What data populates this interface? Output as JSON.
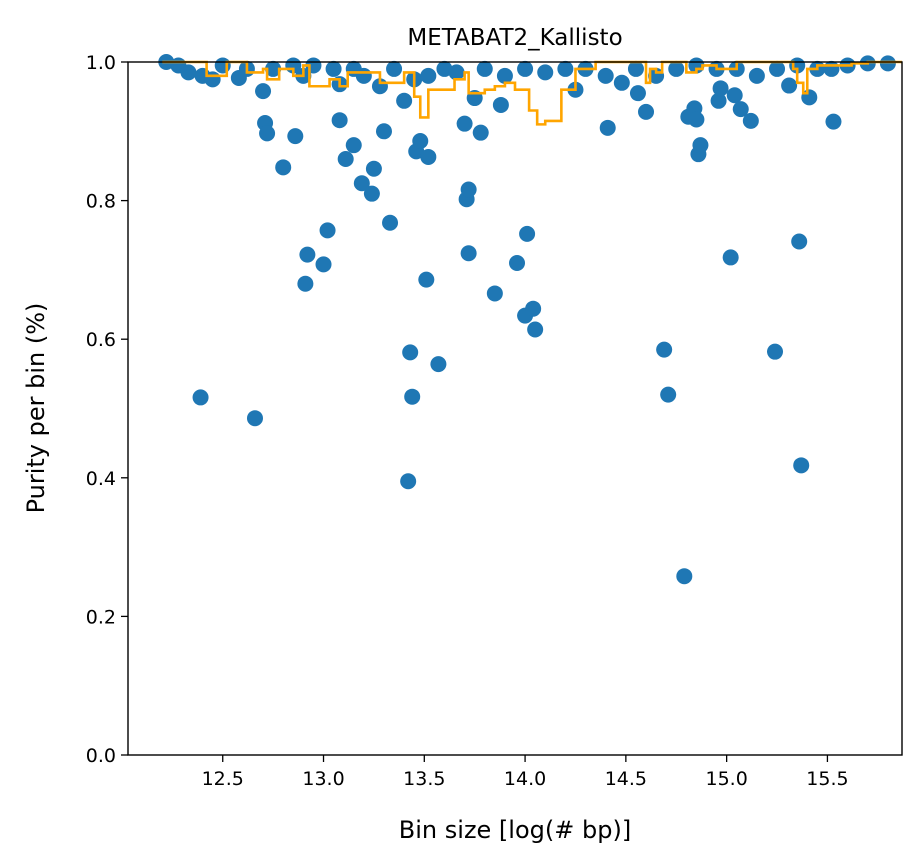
{
  "chart_data": {
    "type": "scatter",
    "title": "METABAT2_Kallisto",
    "xlabel": "Bin size [log(# bp)]",
    "ylabel": "Purity per bin (%)",
    "xlim": [
      12.03,
      15.87
    ],
    "ylim": [
      0.0,
      1.0
    ],
    "xticks": [
      12.5,
      13.0,
      13.5,
      14.0,
      14.5,
      15.0,
      15.5
    ],
    "xtick_labels": [
      "12.5",
      "13.0",
      "13.5",
      "14.0",
      "14.5",
      "15.0",
      "15.5"
    ],
    "yticks": [
      0.0,
      0.2,
      0.4,
      0.6,
      0.8,
      1.0
    ],
    "ytick_labels": [
      "0.0",
      "0.2",
      "0.4",
      "0.6",
      "0.8",
      "1.0"
    ],
    "grid": false,
    "colors": {
      "points": "#1f77b4",
      "line": "#ffa500"
    },
    "series": [
      {
        "kind": "scatter",
        "points": [
          [
            12.22,
            1.0
          ],
          [
            12.28,
            0.995
          ],
          [
            12.33,
            0.985
          ],
          [
            12.4,
            0.98
          ],
          [
            12.45,
            0.975
          ],
          [
            12.5,
            0.995
          ],
          [
            12.58,
            0.977
          ],
          [
            12.62,
            0.99
          ],
          [
            12.7,
            0.958
          ],
          [
            12.75,
            0.99
          ],
          [
            12.85,
            0.995
          ],
          [
            12.9,
            0.98
          ],
          [
            12.95,
            0.995
          ],
          [
            13.05,
            0.99
          ],
          [
            13.08,
            0.968
          ],
          [
            13.15,
            0.99
          ],
          [
            13.2,
            0.98
          ],
          [
            13.28,
            0.965
          ],
          [
            13.35,
            0.99
          ],
          [
            13.45,
            0.975
          ],
          [
            13.52,
            0.98
          ],
          [
            13.6,
            0.99
          ],
          [
            13.66,
            0.985
          ],
          [
            13.8,
            0.99
          ],
          [
            13.9,
            0.98
          ],
          [
            14.0,
            0.99
          ],
          [
            14.1,
            0.985
          ],
          [
            14.2,
            0.99
          ],
          [
            14.25,
            0.96
          ],
          [
            14.3,
            0.99
          ],
          [
            14.4,
            0.98
          ],
          [
            14.48,
            0.97
          ],
          [
            14.55,
            0.99
          ],
          [
            14.65,
            0.98
          ],
          [
            14.75,
            0.99
          ],
          [
            14.85,
            0.995
          ],
          [
            14.95,
            0.99
          ],
          [
            15.05,
            0.99
          ],
          [
            15.15,
            0.98
          ],
          [
            15.25,
            0.99
          ],
          [
            15.35,
            0.995
          ],
          [
            15.45,
            0.99
          ],
          [
            15.52,
            0.99
          ],
          [
            15.6,
            0.995
          ],
          [
            15.7,
            0.998
          ],
          [
            15.8,
            0.998
          ],
          [
            12.39,
            0.516
          ],
          [
            12.66,
            0.486
          ],
          [
            12.71,
            0.912
          ],
          [
            12.72,
            0.897
          ],
          [
            12.8,
            0.848
          ],
          [
            12.86,
            0.893
          ],
          [
            12.91,
            0.68
          ],
          [
            12.92,
            0.722
          ],
          [
            13.0,
            0.708
          ],
          [
            13.02,
            0.757
          ],
          [
            13.08,
            0.916
          ],
          [
            13.11,
            0.86
          ],
          [
            13.15,
            0.88
          ],
          [
            13.19,
            0.825
          ],
          [
            13.24,
            0.81
          ],
          [
            13.25,
            0.846
          ],
          [
            13.3,
            0.9
          ],
          [
            13.33,
            0.768
          ],
          [
            13.4,
            0.944
          ],
          [
            13.42,
            0.395
          ],
          [
            13.43,
            0.581
          ],
          [
            13.44,
            0.517
          ],
          [
            13.46,
            0.871
          ],
          [
            13.48,
            0.886
          ],
          [
            13.51,
            0.686
          ],
          [
            13.52,
            0.863
          ],
          [
            13.57,
            0.564
          ],
          [
            13.7,
            0.911
          ],
          [
            13.71,
            0.802
          ],
          [
            13.72,
            0.816
          ],
          [
            13.72,
            0.724
          ],
          [
            13.75,
            0.948
          ],
          [
            13.78,
            0.898
          ],
          [
            13.85,
            0.666
          ],
          [
            13.88,
            0.938
          ],
          [
            13.96,
            0.71
          ],
          [
            14.0,
            0.634
          ],
          [
            14.01,
            0.752
          ],
          [
            14.04,
            0.644
          ],
          [
            14.05,
            0.614
          ],
          [
            14.41,
            0.905
          ],
          [
            14.56,
            0.955
          ],
          [
            14.6,
            0.928
          ],
          [
            14.69,
            0.585
          ],
          [
            14.71,
            0.52
          ],
          [
            14.79,
            0.258
          ],
          [
            14.81,
            0.921
          ],
          [
            14.84,
            0.933
          ],
          [
            14.85,
            0.917
          ],
          [
            14.86,
            0.867
          ],
          [
            14.87,
            0.88
          ],
          [
            14.96,
            0.944
          ],
          [
            14.97,
            0.962
          ],
          [
            15.02,
            0.718
          ],
          [
            15.04,
            0.952
          ],
          [
            15.07,
            0.932
          ],
          [
            15.12,
            0.915
          ],
          [
            15.24,
            0.582
          ],
          [
            15.31,
            0.966
          ],
          [
            15.36,
            0.741
          ],
          [
            15.37,
            0.418
          ],
          [
            15.41,
            0.949
          ],
          [
            15.53,
            0.914
          ]
        ]
      },
      {
        "kind": "line",
        "points": [
          [
            12.2,
            1.0
          ],
          [
            12.4,
            1.0
          ],
          [
            12.42,
            0.98
          ],
          [
            12.5,
            0.98
          ],
          [
            12.52,
            1.0
          ],
          [
            12.6,
            1.0
          ],
          [
            12.62,
            0.985
          ],
          [
            12.7,
            0.99
          ],
          [
            12.72,
            0.975
          ],
          [
            12.78,
            0.99
          ],
          [
            12.82,
            0.99
          ],
          [
            12.85,
            0.98
          ],
          [
            12.9,
            0.995
          ],
          [
            12.93,
            0.965
          ],
          [
            13.0,
            0.965
          ],
          [
            13.03,
            0.975
          ],
          [
            13.08,
            0.965
          ],
          [
            13.12,
            0.985
          ],
          [
            13.2,
            0.985
          ],
          [
            13.28,
            0.97
          ],
          [
            13.35,
            0.97
          ],
          [
            13.4,
            0.985
          ],
          [
            13.45,
            0.95
          ],
          [
            13.48,
            0.92
          ],
          [
            13.52,
            0.96
          ],
          [
            13.6,
            0.96
          ],
          [
            13.65,
            0.975
          ],
          [
            13.7,
            0.985
          ],
          [
            13.72,
            0.955
          ],
          [
            13.8,
            0.96
          ],
          [
            13.85,
            0.965
          ],
          [
            13.9,
            0.97
          ],
          [
            13.95,
            0.96
          ],
          [
            14.0,
            0.96
          ],
          [
            14.02,
            0.93
          ],
          [
            14.05,
            0.93
          ],
          [
            14.06,
            0.91
          ],
          [
            14.1,
            0.915
          ],
          [
            14.15,
            0.915
          ],
          [
            14.18,
            0.96
          ],
          [
            14.22,
            0.96
          ],
          [
            14.25,
            0.99
          ],
          [
            14.3,
            0.99
          ],
          [
            14.35,
            1.0
          ],
          [
            14.55,
            1.0
          ],
          [
            14.6,
            0.97
          ],
          [
            14.62,
            0.99
          ],
          [
            14.65,
            0.985
          ],
          [
            14.68,
            1.0
          ],
          [
            14.75,
            1.0
          ],
          [
            14.8,
            0.985
          ],
          [
            14.85,
            0.99
          ],
          [
            14.88,
            0.995
          ],
          [
            14.95,
            0.99
          ],
          [
            15.05,
            1.0
          ],
          [
            15.3,
            1.0
          ],
          [
            15.33,
            0.99
          ],
          [
            15.35,
            0.97
          ],
          [
            15.38,
            0.955
          ],
          [
            15.4,
            0.99
          ],
          [
            15.45,
            0.995
          ],
          [
            15.55,
            0.995
          ],
          [
            15.62,
            0.998
          ],
          [
            15.7,
            1.0
          ],
          [
            15.87,
            1.0
          ]
        ]
      }
    ]
  }
}
